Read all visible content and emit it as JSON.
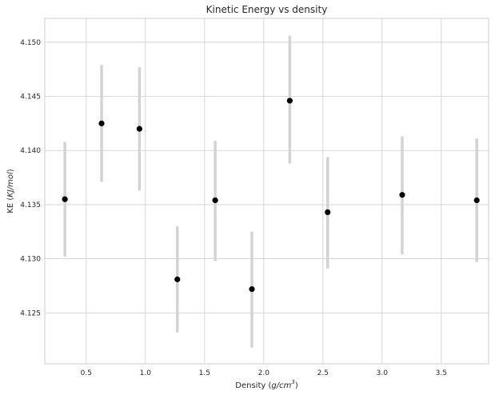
{
  "chart_data": {
    "type": "scatter",
    "title": "Kinetic Energy vs density",
    "xlabel_parts": [
      "Density (",
      "g/cm",
      "3",
      ")"
    ],
    "ylabel_parts": [
      "KE (",
      "KJ/mol",
      ")"
    ],
    "xlim": [
      0.15,
      3.9
    ],
    "ylim": [
      4.1203,
      4.1522
    ],
    "x_ticks": [
      0.5,
      1.0,
      1.5,
      2.0,
      2.5,
      3.0,
      3.5
    ],
    "x_tick_labels": [
      "0.5",
      "1.0",
      "1.5",
      "2.0",
      "2.5",
      "3.0",
      "3.5"
    ],
    "y_ticks": [
      4.125,
      4.13,
      4.135,
      4.14,
      4.145,
      4.15
    ],
    "y_tick_labels": [
      "4.125",
      "4.130",
      "4.135",
      "4.140",
      "4.145",
      "4.150"
    ],
    "grid": true,
    "series": [
      {
        "x": [
          0.32,
          0.63,
          0.95,
          1.27,
          1.59,
          1.9,
          2.22,
          2.54,
          3.17,
          3.8
        ],
        "y": [
          4.1355,
          4.1425,
          4.142,
          4.1281,
          4.1354,
          4.1272,
          4.1446,
          4.1343,
          4.1359,
          4.1354
        ],
        "err_low": [
          4.1302,
          4.1371,
          4.1363,
          4.1232,
          4.1298,
          4.1218,
          4.1388,
          4.1291,
          4.1304,
          4.1297
        ],
        "err_high": [
          4.1408,
          4.1479,
          4.1477,
          4.133,
          4.1409,
          4.1325,
          4.1506,
          4.1394,
          4.1413,
          4.1411
        ]
      }
    ],
    "colors": {
      "marker": "#000000",
      "errorbar": "#d3d3d3",
      "grid": "#cccccc",
      "spine": "#cccccc",
      "text": "#262626"
    }
  }
}
